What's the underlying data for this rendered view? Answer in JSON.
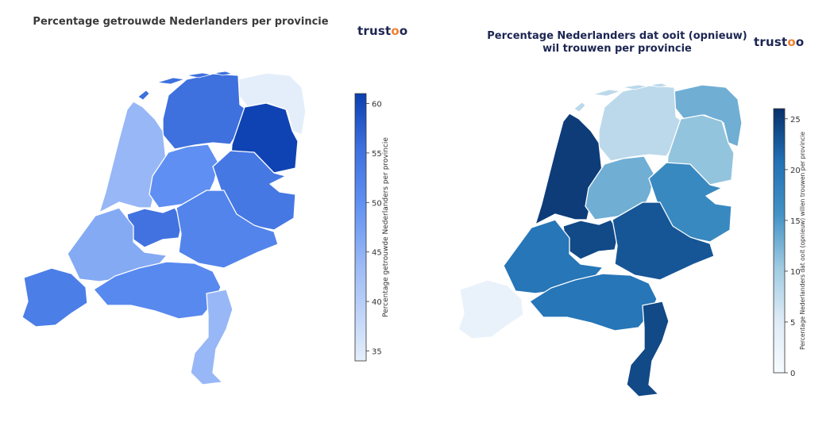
{
  "chart_data": [
    {
      "type": "choropleth",
      "title": "Percentage getrouwde Nederlanders per provincie",
      "colorbar_label": "Percentage getrouwde Nederlanders per provincie",
      "colorbar_range": [
        34,
        61
      ],
      "colorbar_ticks": [
        "35",
        "40",
        "45",
        "50",
        "55",
        "60"
      ],
      "colorbar_tick_values": [
        35,
        40,
        45,
        50,
        55,
        60
      ],
      "regions": [
        {
          "name": "Groningen",
          "value": 33.5
        },
        {
          "name": "Friesland",
          "value": 55.5
        },
        {
          "name": "Drenthe",
          "value": 60.5
        },
        {
          "name": "Noord-Holland",
          "value": 44
        },
        {
          "name": "Flevoland",
          "value": 50
        },
        {
          "name": "Overijssel",
          "value": 54
        },
        {
          "name": "Utrecht",
          "value": 55
        },
        {
          "name": "Gelderland",
          "value": 52
        },
        {
          "name": "Zuid-Holland",
          "value": 46
        },
        {
          "name": "Zeeland",
          "value": 53
        },
        {
          "name": "Noord-Brabant",
          "value": 51
        },
        {
          "name": "Limburg",
          "value": 44
        }
      ],
      "logo": "trustoo"
    },
    {
      "type": "choropleth",
      "title_lines": [
        "Percentage Nederlanders dat ooit (opnieuw)",
        "wil trouwen per provincie"
      ],
      "colorbar_label": "Percentage Nederlanders dat ooit (opnieuw) willen trouwen per provincie",
      "colorbar_range": [
        0,
        26
      ],
      "colorbar_ticks": [
        "0",
        "5",
        "10",
        "15",
        "20",
        "25"
      ],
      "colorbar_tick_values": [
        0,
        5,
        10,
        15,
        20,
        25
      ],
      "regions": [
        {
          "name": "Groningen",
          "value": 13
        },
        {
          "name": "Friesland",
          "value": 8
        },
        {
          "name": "Drenthe",
          "value": 11
        },
        {
          "name": "Noord-Holland",
          "value": 25
        },
        {
          "name": "Flevoland",
          "value": 13
        },
        {
          "name": "Overijssel",
          "value": 17
        },
        {
          "name": "Utrecht",
          "value": 24
        },
        {
          "name": "Gelderland",
          "value": 23
        },
        {
          "name": "Zuid-Holland",
          "value": 20
        },
        {
          "name": "Zeeland",
          "value": 3
        },
        {
          "name": "Noord-Brabant",
          "value": 20
        },
        {
          "name": "Limburg",
          "value": 24
        }
      ],
      "logo": "trustoo"
    }
  ]
}
